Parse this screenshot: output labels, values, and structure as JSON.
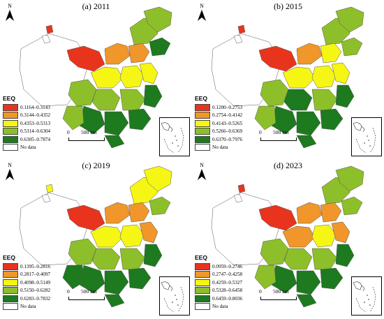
{
  "legend_title": "EEQ",
  "no_data_label": "No data",
  "north_label": "N",
  "scale_labels": [
    "0",
    "500 km"
  ],
  "colors": [
    "#e8341c",
    "#f0962a",
    "#f6f615",
    "#8dbf2a",
    "#1d7a1f"
  ],
  "panels": [
    {
      "title": "(a) 2011",
      "classes": [
        "0.1164–0.3143",
        "0.3144–0.4352",
        "0.4353–0.5313",
        "0.5314–0.6304",
        "0.6305–0.7874"
      ]
    },
    {
      "title": "(b) 2015",
      "classes": [
        "0.1200–0.2753",
        "0.2754–0.4142",
        "0.4143–0.5265",
        "0.5266–0.6369",
        "0.6370–0.7976"
      ]
    },
    {
      "title": "(c) 2019",
      "classes": [
        "0.1395–0.2816",
        "0.2817–0.4097",
        "0.4098–0.5149",
        "0.5150–0.6282",
        "0.6283–0.7832"
      ]
    },
    {
      "title": "(d) 2023",
      "classes": [
        "0.0959–0.2746",
        "0.2747–0.4258",
        "0.4259–0.5327",
        "0.5328–0.6458",
        "0.6459–0.8036"
      ]
    }
  ]
}
